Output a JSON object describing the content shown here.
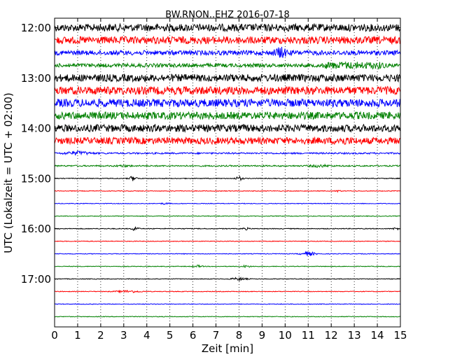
{
  "chart_data": {
    "type": "line",
    "title": "BW.RNON..EHZ 2016-07-18",
    "xlabel": "Zeit  [min]",
    "ylabel": "UTC (Lokalzeit = UTC + 02:00)",
    "xlim": [
      0,
      15
    ],
    "x_ticks": [
      0,
      1,
      2,
      3,
      4,
      5,
      6,
      7,
      8,
      9,
      10,
      11,
      12,
      13,
      14,
      15
    ],
    "x_tick_labels": [
      "0",
      "1",
      "2",
      "3",
      "4",
      "5",
      "6",
      "7",
      "8",
      "9",
      "10",
      "11",
      "12",
      "13",
      "14",
      "15"
    ],
    "y_tick_labels": [
      "12:00",
      "13:00",
      "14:00",
      "15:00",
      "16:00",
      "17:00"
    ],
    "y_tick_rows": [
      0,
      4,
      8,
      12,
      16,
      20
    ],
    "grid": {
      "x": "dotted-vertical",
      "y": false
    },
    "legend": "none",
    "colors": [
      "#000000",
      "#ff0000",
      "#0000ff",
      "#008000"
    ],
    "rows": [
      {
        "start": "12:00",
        "amp": 0.55,
        "events": []
      },
      {
        "start": "12:15",
        "amp": 0.55,
        "events": []
      },
      {
        "start": "12:30",
        "amp": 0.35,
        "events": [
          {
            "t": 9.8,
            "a": 0.95,
            "w": 0.25
          }
        ]
      },
      {
        "start": "12:45",
        "amp": 0.28,
        "events": [
          {
            "t": 12.2,
            "a": 0.55,
            "w": 2.0
          }
        ]
      },
      {
        "start": "13:00",
        "amp": 0.55,
        "events": []
      },
      {
        "start": "13:15",
        "amp": 0.6,
        "events": []
      },
      {
        "start": "13:30",
        "amp": 0.6,
        "events": []
      },
      {
        "start": "13:45",
        "amp": 0.55,
        "events": []
      },
      {
        "start": "14:00",
        "amp": 0.55,
        "events": []
      },
      {
        "start": "14:15",
        "amp": 0.5,
        "events": [
          {
            "t": 12.5,
            "a": 0.7,
            "w": 0.3
          }
        ]
      },
      {
        "start": "14:30",
        "amp": 0.12,
        "events": [
          {
            "t": 1.0,
            "a": 0.35,
            "w": 0.5
          }
        ]
      },
      {
        "start": "14:45",
        "amp": 0.1,
        "events": [
          {
            "t": 3.0,
            "a": 0.2,
            "w": 0.3
          },
          {
            "t": 11.5,
            "a": 0.25,
            "w": 0.4
          }
        ]
      },
      {
        "start": "15:00",
        "amp": 0.06,
        "events": [
          {
            "t": 3.4,
            "a": 0.4,
            "w": 0.15
          },
          {
            "t": 8.0,
            "a": 0.35,
            "w": 0.15
          }
        ]
      },
      {
        "start": "15:15",
        "amp": 0.05,
        "events": [
          {
            "t": 12.3,
            "a": 0.2,
            "w": 0.1
          }
        ]
      },
      {
        "start": "15:30",
        "amp": 0.05,
        "events": [
          {
            "t": 4.8,
            "a": 0.15,
            "w": 0.2
          }
        ]
      },
      {
        "start": "15:45",
        "amp": 0.05,
        "events": []
      },
      {
        "start": "16:00",
        "amp": 0.06,
        "events": [
          {
            "t": 3.5,
            "a": 0.45,
            "w": 0.12
          },
          {
            "t": 8.3,
            "a": 0.2,
            "w": 0.15
          },
          {
            "t": 14.8,
            "a": 0.25,
            "w": 0.1
          }
        ]
      },
      {
        "start": "16:15",
        "amp": 0.05,
        "events": []
      },
      {
        "start": "16:30",
        "amp": 0.05,
        "events": [
          {
            "t": 11.0,
            "a": 0.35,
            "w": 0.3
          }
        ]
      },
      {
        "start": "16:45",
        "amp": 0.05,
        "events": [
          {
            "t": 6.2,
            "a": 0.2,
            "w": 0.2
          },
          {
            "t": 8.3,
            "a": 0.2,
            "w": 0.2
          }
        ]
      },
      {
        "start": "17:00",
        "amp": 0.05,
        "events": [
          {
            "t": 8.0,
            "a": 0.25,
            "w": 0.3
          }
        ]
      },
      {
        "start": "17:15",
        "amp": 0.05,
        "events": [
          {
            "t": 3.2,
            "a": 0.2,
            "w": 0.5
          }
        ]
      },
      {
        "start": "17:30",
        "amp": 0.05,
        "events": []
      },
      {
        "start": "17:45",
        "amp": 0.05,
        "events": []
      }
    ]
  }
}
